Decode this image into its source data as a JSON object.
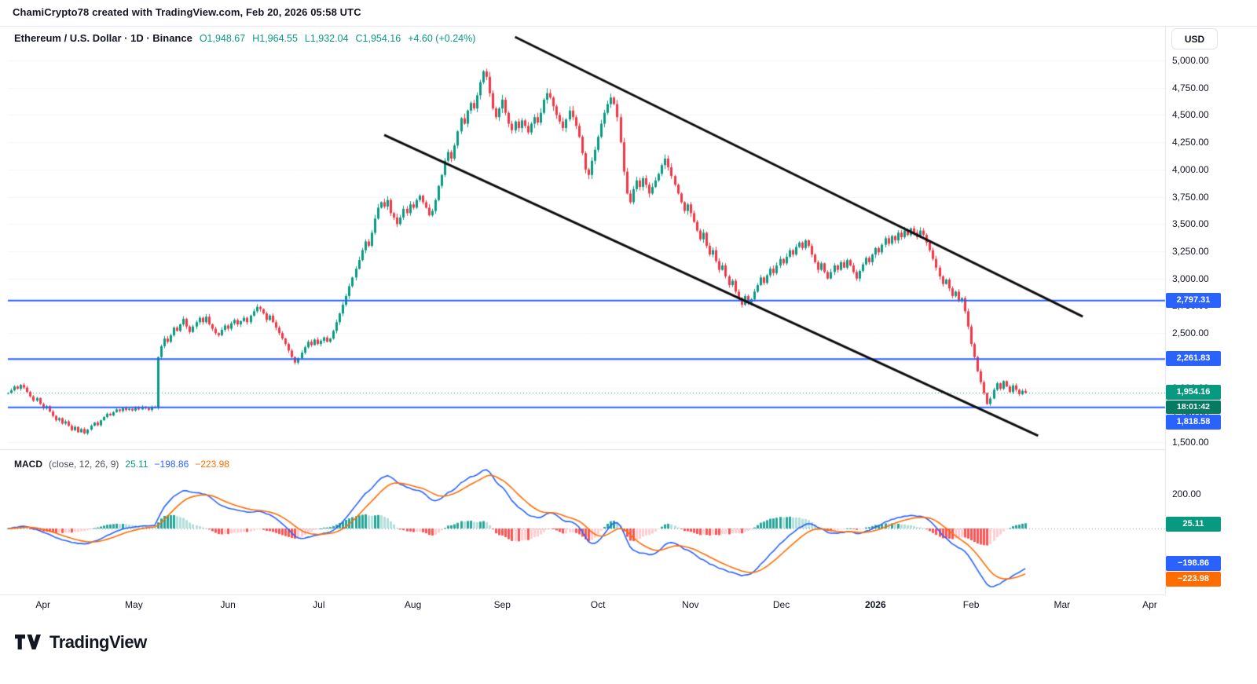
{
  "attribution": "ChamiCrypto78 created with TradingView.com, Feb 20, 2026 05:58 UTC",
  "symbol": {
    "title": "Ethereum / U.S. Dollar · 1D · Binance",
    "o_text": "O1,948.67",
    "h_text": "H1,964.55",
    "l_text": "L1,932.04",
    "c_text": "C1,954.16",
    "change_text": "+4.60 (+0.24%)"
  },
  "currency_button": "USD",
  "logo_text": "TradingView",
  "price_axis": {
    "ticks": [
      {
        "label": "5,000.00",
        "value": 5000
      },
      {
        "label": "4,750.00",
        "value": 4750
      },
      {
        "label": "4,500.00",
        "value": 4500
      },
      {
        "label": "4,250.00",
        "value": 4250
      },
      {
        "label": "4,000.00",
        "value": 4000
      },
      {
        "label": "3,750.00",
        "value": 3750
      },
      {
        "label": "3,500.00",
        "value": 3500
      },
      {
        "label": "3,250.00",
        "value": 3250
      },
      {
        "label": "3,000.00",
        "value": 3000
      },
      {
        "label": "2,750.00",
        "value": 2750
      },
      {
        "label": "2,500.00",
        "value": 2500
      },
      {
        "label": "2,250.00",
        "value": 2250
      },
      {
        "label": "2,000.00",
        "value": 2000
      },
      {
        "label": "1,750.00",
        "value": 1750
      },
      {
        "label": "1,500.00",
        "value": 1500
      }
    ]
  },
  "levels": [
    {
      "label": "2,797.31",
      "value": 2797.31,
      "color": "#2962ff"
    },
    {
      "label": "2,261.83",
      "value": 2261.83,
      "color": "#2962ff"
    },
    {
      "label": "1,818.58",
      "value": 1818.58,
      "color": "#2962ff"
    }
  ],
  "last_price": {
    "label": "1,954.16",
    "value": 1954.16,
    "countdown": "18:01:42"
  },
  "macd": {
    "title": "MACD",
    "params": "(close, 12, 26, 9)",
    "hist_label": "25.11",
    "macd_label": "−198.86",
    "signal_label": "−223.98",
    "hist_value": 25.11,
    "macd_value": -198.86,
    "signal_value": -223.98,
    "axis_200": "200.00",
    "axis_0": "0.00"
  },
  "time_axis": {
    "months": [
      {
        "label": "Apr",
        "i": 11
      },
      {
        "label": "May",
        "i": 39.5
      },
      {
        "label": "Jun",
        "i": 69
      },
      {
        "label": "Jul",
        "i": 97.5
      },
      {
        "label": "Aug",
        "i": 127
      },
      {
        "label": "Sep",
        "i": 155
      },
      {
        "label": "Oct",
        "i": 185
      },
      {
        "label": "Nov",
        "i": 214
      },
      {
        "label": "Dec",
        "i": 242.5
      },
      {
        "label": "2026",
        "i": 272
      },
      {
        "label": "Feb",
        "i": 302
      },
      {
        "label": "Mar",
        "i": 330.5
      },
      {
        "label": "Apr",
        "i": 358
      }
    ]
  },
  "colors": {
    "up": "#089981",
    "down": "#f23645",
    "level": "#2962ff",
    "last_badge": "#089981",
    "countdown_badge": "#067a62",
    "macd_line": "#2962ff",
    "signal_line": "#ff6d00",
    "hist": [
      "#26a69a",
      "#b2dfdb",
      "#ffcdd2",
      "#ff5252"
    ],
    "trend": "#0d0d0d"
  },
  "chart_data": {
    "type": "candlestick",
    "title": "Ethereum / U.S. Dollar",
    "exchange": "Binance",
    "interval": "1D",
    "ylim": [
      1500,
      5000
    ],
    "xlabels": [
      "Apr",
      "May",
      "Jun",
      "Jul",
      "Aug",
      "Sep",
      "Oct",
      "Nov",
      "Dec",
      "2026",
      "Feb",
      "Mar",
      "Apr"
    ],
    "ohlc_current": {
      "open": 1948.67,
      "high": 1964.55,
      "low": 1932.04,
      "close": 1954.16,
      "change": 4.6,
      "change_pct": 0.24
    },
    "levels": [
      2797.31,
      2261.83,
      1818.58
    ],
    "last": 1954.16,
    "macd_settings": [
      12,
      26,
      9
    ],
    "macd_displayed": {
      "hist": 25.11,
      "macd": -198.86,
      "signal": -223.98
    },
    "trendlines": [
      {
        "i1": 159,
        "p1": 5216,
        "i2": 337,
        "p2": 2652
      },
      {
        "i1": 118,
        "p1": 4316,
        "i2": 323,
        "p2": 1558
      }
    ],
    "closes": [
      1950,
      1975,
      2010,
      1990,
      2025,
      2000,
      1960,
      1920,
      1880,
      1905,
      1850,
      1810,
      1830,
      1780,
      1740,
      1700,
      1720,
      1670,
      1690,
      1650,
      1610,
      1640,
      1590,
      1620,
      1580,
      1615,
      1650,
      1680,
      1655,
      1700,
      1730,
      1760,
      1745,
      1775,
      1800,
      1785,
      1810,
      1795,
      1805,
      1790,
      1815,
      1800,
      1825,
      1810,
      1795,
      1820,
      1815,
      2280,
      2380,
      2450,
      2420,
      2480,
      2550,
      2520,
      2580,
      2630,
      2560,
      2510,
      2560,
      2600,
      2640,
      2600,
      2650,
      2580,
      2540,
      2500,
      2480,
      2530,
      2570,
      2540,
      2590,
      2620,
      2580,
      2610,
      2640,
      2600,
      2660,
      2700,
      2740,
      2720,
      2680,
      2620,
      2660,
      2600,
      2550,
      2500,
      2450,
      2400,
      2340,
      2280,
      2230,
      2270,
      2320,
      2370,
      2420,
      2390,
      2440,
      2400,
      2430,
      2460,
      2420,
      2450,
      2520,
      2600,
      2680,
      2760,
      2840,
      2930,
      3010,
      3090,
      3170,
      3260,
      3340,
      3300,
      3420,
      3550,
      3650,
      3700,
      3660,
      3720,
      3600,
      3560,
      3500,
      3560,
      3640,
      3600,
      3680,
      3650,
      3720,
      3760,
      3700,
      3650,
      3580,
      3620,
      3720,
      3850,
      3950,
      4080,
      4160,
      4100,
      4220,
      4350,
      4470,
      4420,
      4540,
      4610,
      4560,
      4680,
      4800,
      4900,
      4850,
      4700,
      4560,
      4480,
      4560,
      4640,
      4520,
      4420,
      4360,
      4440,
      4380,
      4450,
      4400,
      4340,
      4420,
      4480,
      4430,
      4520,
      4640,
      4700,
      4660,
      4580,
      4500,
      4440,
      4380,
      4460,
      4540,
      4480,
      4400,
      4300,
      4150,
      4000,
      3950,
      4080,
      4180,
      4300,
      4420,
      4520,
      4600,
      4660,
      4600,
      4480,
      4250,
      3980,
      3780,
      3700,
      3820,
      3900,
      3840,
      3920,
      3860,
      3780,
      3840,
      3900,
      3960,
      4040,
      4100,
      4020,
      3940,
      3860,
      3780,
      3700,
      3620,
      3680,
      3600,
      3520,
      3440,
      3360,
      3420,
      3300,
      3220,
      3260,
      3160,
      3080,
      3120,
      3020,
      2940,
      2980,
      2880,
      2820,
      2760,
      2840,
      2780,
      2810,
      2880,
      2940,
      3010,
      2960,
      3030,
      3090,
      3050,
      3120,
      3180,
      3140,
      3200,
      3260,
      3220,
      3290,
      3330,
      3280,
      3350,
      3300,
      3220,
      3150,
      3080,
      3140,
      3060,
      3000,
      3060,
      3120,
      3080,
      3150,
      3100,
      3170,
      3120,
      3060,
      3000,
      3070,
      3130,
      3190,
      3150,
      3220,
      3280,
      3240,
      3310,
      3370,
      3320,
      3390,
      3350,
      3420,
      3380,
      3440,
      3400,
      3460,
      3420,
      3380,
      3440,
      3400,
      3330,
      3260,
      3180,
      3100,
      3020,
      2950,
      2990,
      2910,
      2840,
      2880,
      2800,
      2820,
      2700,
      2560,
      2400,
      2280,
      2150,
      2050,
      1950,
      1850,
      1900,
      1980,
      2040,
      1990,
      2060,
      2010,
      1960,
      2020,
      1980,
      1940,
      1970,
      1954.16
    ]
  }
}
